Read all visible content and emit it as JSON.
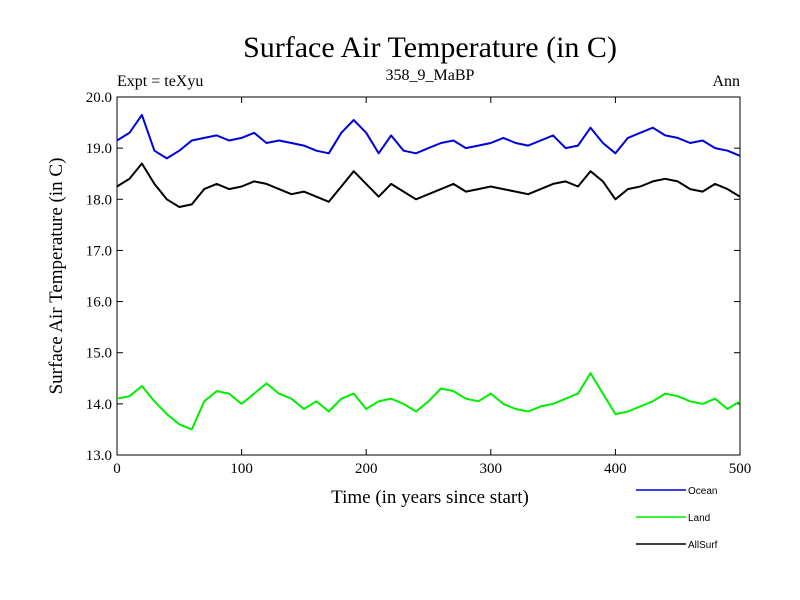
{
  "chart_data": {
    "type": "line",
    "title": "Surface Air Temperature (in C)",
    "subtitle_left": "Expt = teXyu",
    "subtitle_center": "358_9_MaBP",
    "subtitle_right": "Ann",
    "xlabel": "Time (in years since start)",
    "ylabel": "Surface Air Temperature (in C)",
    "xlim": [
      0,
      500
    ],
    "ylim": [
      13.0,
      20.0
    ],
    "xticks": [
      "0",
      "100",
      "200",
      "300",
      "400",
      "500"
    ],
    "yticks": [
      "13.0",
      "14.0",
      "15.0",
      "16.0",
      "17.0",
      "18.0",
      "19.0",
      "20.0"
    ],
    "x_step": 10,
    "series": [
      {
        "name": "Ocean",
        "color": "#0000dd",
        "values": [
          19.15,
          19.3,
          19.65,
          18.95,
          18.8,
          18.95,
          19.15,
          19.2,
          19.25,
          19.15,
          19.2,
          19.3,
          19.1,
          19.15,
          19.1,
          19.05,
          18.95,
          18.9,
          19.3,
          19.55,
          19.3,
          18.9,
          19.25,
          18.95,
          18.9,
          19.0,
          19.1,
          19.15,
          19.0,
          19.05,
          19.1,
          19.2,
          19.1,
          19.05,
          19.15,
          19.25,
          19.0,
          19.05,
          19.4,
          19.1,
          18.9,
          19.2,
          19.3,
          19.4,
          19.25,
          19.2,
          19.1,
          19.15,
          19.0,
          18.95,
          18.85
        ]
      },
      {
        "name": "Land",
        "color": "#00ee00",
        "values": [
          14.1,
          14.15,
          14.35,
          14.05,
          13.8,
          13.6,
          13.5,
          14.05,
          14.25,
          14.2,
          14.0,
          14.2,
          14.4,
          14.2,
          14.1,
          13.9,
          14.05,
          13.85,
          14.1,
          14.2,
          13.9,
          14.05,
          14.1,
          14.0,
          13.85,
          14.05,
          14.3,
          14.25,
          14.1,
          14.05,
          14.2,
          14.0,
          13.9,
          13.85,
          13.95,
          14.0,
          14.1,
          14.2,
          14.6,
          14.2,
          13.8,
          13.85,
          13.95,
          14.05,
          14.2,
          14.15,
          14.05,
          14.0,
          14.1,
          13.9,
          14.05
        ]
      },
      {
        "name": "AllSurf",
        "color": "#000000",
        "values": [
          18.25,
          18.4,
          18.7,
          18.3,
          18.0,
          17.85,
          17.9,
          18.2,
          18.3,
          18.2,
          18.25,
          18.35,
          18.3,
          18.2,
          18.1,
          18.15,
          18.05,
          17.95,
          18.25,
          18.55,
          18.3,
          18.05,
          18.3,
          18.15,
          18.0,
          18.1,
          18.2,
          18.3,
          18.15,
          18.2,
          18.25,
          18.2,
          18.15,
          18.1,
          18.2,
          18.3,
          18.35,
          18.25,
          18.55,
          18.35,
          18.0,
          18.2,
          18.25,
          18.35,
          18.4,
          18.35,
          18.2,
          18.15,
          18.3,
          18.2,
          18.05
        ]
      }
    ]
  }
}
